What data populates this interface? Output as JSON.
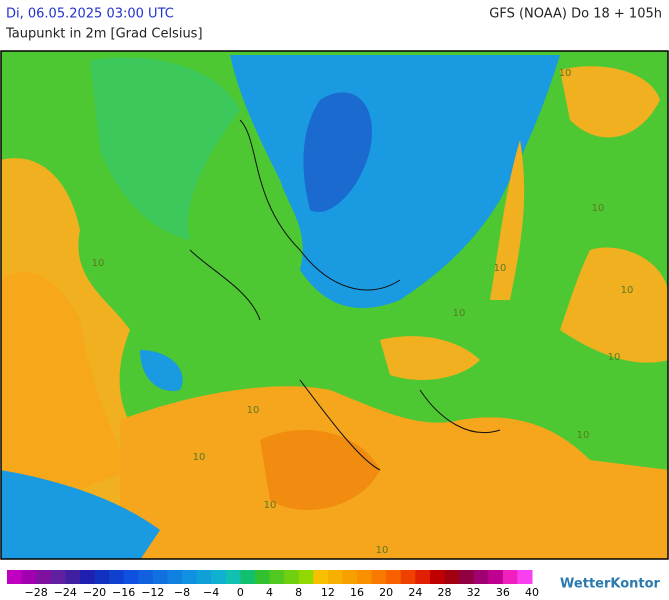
{
  "header": {
    "timestamp": "Di, 06.05.2025 03:00 UTC",
    "model": "GFS (NOAA) Do 18 + 105h",
    "parameter": "Taupunkt in 2m [Grad Celsius]"
  },
  "map": {
    "contour_labels": [
      "10",
      "10",
      "10",
      "10",
      "10",
      "10",
      "10",
      "10",
      "10",
      "10",
      "10",
      "10"
    ]
  },
  "legend": {
    "labels": [
      "−28",
      "−24",
      "−20",
      "−16",
      "−12",
      "−8",
      "−4",
      "0",
      "4",
      "8",
      "12",
      "16",
      "20",
      "24",
      "28",
      "32",
      "36",
      "40"
    ]
  },
  "logo": "WetterKontor"
}
